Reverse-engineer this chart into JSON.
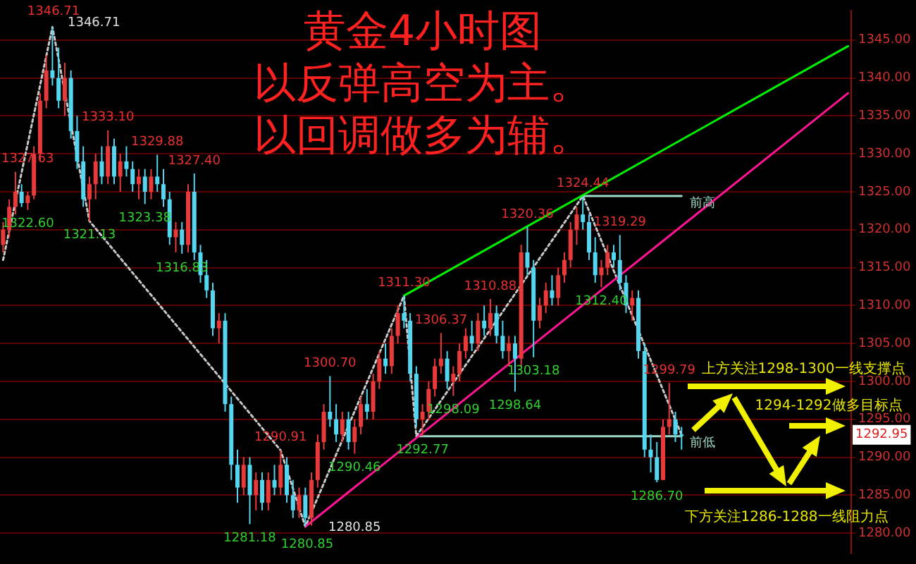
{
  "chart_data": {
    "type": "candlestick",
    "title": "黄金4小时图",
    "subtitle": "以反弹高空为主。以回调做多为辅。",
    "categories": [
      null,
      null,
      null,
      null,
      null,
      null,
      null,
      null,
      null,
      null,
      null,
      null,
      null,
      null,
      null,
      null,
      null,
      null,
      null,
      null,
      null,
      null,
      null,
      null,
      null,
      null,
      null,
      null,
      null,
      null,
      null,
      null,
      null,
      null,
      null,
      null,
      null,
      null,
      null,
      null,
      null,
      null,
      null,
      null,
      null,
      null,
      null,
      null,
      null,
      null,
      null,
      null,
      null,
      null,
      null,
      null,
      null,
      null,
      null,
      null,
      null,
      null,
      null,
      null,
      null,
      null,
      null,
      null,
      null,
      null,
      null,
      null,
      null,
      null,
      null,
      null,
      null,
      null,
      null,
      null,
      null,
      null,
      null,
      null,
      null,
      null,
      null,
      null,
      null,
      null,
      null,
      null,
      null,
      null,
      null,
      null,
      null,
      null,
      null,
      null,
      null,
      null,
      null,
      null,
      null,
      null,
      null,
      null,
      null,
      null,
      null,
      null,
      null,
      null,
      null,
      null,
      null,
      null,
      null,
      null,
      null,
      null,
      null,
      null,
      null,
      null,
      null,
      null,
      null,
      null,
      null,
      null,
      null,
      null,
      null,
      null,
      null,
      null
    ],
    "ohlc": [
      [
        1318,
        1321,
        1317,
        1320
      ],
      [
        1320,
        1324,
        1319,
        1323
      ],
      [
        1323,
        1327.63,
        1322,
        1325
      ],
      [
        1325,
        1326,
        1323,
        1323.5
      ],
      [
        1323.5,
        1325,
        1322.6,
        1324.5
      ],
      [
        1324.5,
        1331,
        1324,
        1330
      ],
      [
        1330,
        1338,
        1329,
        1337
      ],
      [
        1337,
        1343,
        1336,
        1341
      ],
      [
        1341,
        1346.71,
        1339,
        1340
      ],
      [
        1340,
        1344,
        1336,
        1337
      ],
      [
        1337,
        1342,
        1335,
        1340
      ],
      [
        1340,
        1341,
        1332,
        1333
      ],
      [
        1333,
        1335,
        1328,
        1329
      ],
      [
        1329,
        1331,
        1323,
        1324
      ],
      [
        1324,
        1327,
        1321.13,
        1326
      ],
      [
        1326,
        1330,
        1324,
        1329
      ],
      [
        1329,
        1331,
        1326,
        1327
      ],
      [
        1327,
        1333.1,
        1326,
        1331
      ],
      [
        1331,
        1332,
        1326,
        1327
      ],
      [
        1327,
        1330,
        1325,
        1329
      ],
      [
        1329,
        1331,
        1327,
        1328
      ],
      [
        1328,
        1329,
        1325,
        1326
      ],
      [
        1326,
        1328,
        1324,
        1327
      ],
      [
        1327,
        1328,
        1323.38,
        1325
      ],
      [
        1325,
        1328,
        1324,
        1327
      ],
      [
        1327,
        1329.88,
        1325,
        1326
      ],
      [
        1326,
        1328,
        1323,
        1324
      ],
      [
        1324,
        1325,
        1318,
        1319
      ],
      [
        1319,
        1321,
        1317,
        1320
      ],
      [
        1320,
        1321,
        1316.83,
        1318
      ],
      [
        1318,
        1326,
        1317,
        1325
      ],
      [
        1325,
        1327.4,
        1316,
        1317
      ],
      [
        1317,
        1318,
        1313,
        1314
      ],
      [
        1314,
        1316,
        1311,
        1312
      ],
      [
        1312,
        1313,
        1306,
        1307
      ],
      [
        1307,
        1309,
        1305,
        1308
      ],
      [
        1308,
        1309,
        1296,
        1297
      ],
      [
        1297,
        1298,
        1287,
        1289
      ],
      [
        1289,
        1291,
        1284,
        1286
      ],
      [
        1286,
        1290,
        1285,
        1289
      ],
      [
        1289,
        1290,
        1281.18,
        1285
      ],
      [
        1285,
        1288,
        1283,
        1287
      ],
      [
        1287,
        1288,
        1283,
        1284
      ],
      [
        1284,
        1288,
        1283,
        1287
      ],
      [
        1287,
        1289,
        1285,
        1286
      ],
      [
        1286,
        1290.91,
        1285,
        1289
      ],
      [
        1289,
        1290,
        1284,
        1285
      ],
      [
        1285,
        1287,
        1282,
        1283
      ],
      [
        1283,
        1286,
        1282,
        1285
      ],
      [
        1285,
        1286,
        1280.85,
        1282
      ],
      [
        1282,
        1288,
        1281,
        1287
      ],
      [
        1287,
        1293,
        1286,
        1292
      ],
      [
        1292,
        1297,
        1291,
        1296
      ],
      [
        1296,
        1300.7,
        1294,
        1295
      ],
      [
        1295,
        1297,
        1292,
        1293
      ],
      [
        1293,
        1296,
        1292,
        1295
      ],
      [
        1295,
        1296,
        1291,
        1292
      ],
      [
        1292,
        1295,
        1290.46,
        1294
      ],
      [
        1294,
        1298,
        1293,
        1297
      ],
      [
        1297,
        1299,
        1295,
        1296
      ],
      [
        1296,
        1301,
        1295,
        1300
      ],
      [
        1300,
        1304,
        1299,
        1303
      ],
      [
        1303,
        1305,
        1301,
        1302
      ],
      [
        1302,
        1307,
        1301,
        1306
      ],
      [
        1306,
        1310,
        1305,
        1309
      ],
      [
        1309,
        1311.3,
        1307,
        1308
      ],
      [
        1308,
        1309,
        1300,
        1301
      ],
      [
        1301,
        1302,
        1294,
        1295
      ],
      [
        1295,
        1297,
        1292.77,
        1296
      ],
      [
        1296,
        1300,
        1295,
        1299
      ],
      [
        1299,
        1303,
        1298,
        1302
      ],
      [
        1302,
        1306.37,
        1301,
        1303
      ],
      [
        1303,
        1304,
        1299,
        1300
      ],
      [
        1300,
        1302,
        1298.09,
        1301
      ],
      [
        1301,
        1305,
        1300,
        1304
      ],
      [
        1304,
        1307,
        1303,
        1306
      ],
      [
        1306,
        1308,
        1304,
        1305
      ],
      [
        1305,
        1309,
        1304,
        1308
      ],
      [
        1308,
        1310,
        1306,
        1307
      ],
      [
        1307,
        1310.88,
        1306,
        1309
      ],
      [
        1309,
        1310,
        1305,
        1306
      ],
      [
        1306,
        1308,
        1303,
        1304
      ],
      [
        1304,
        1306,
        1302,
        1305
      ],
      [
        1305,
        1306,
        1298.64,
        1303
      ],
      [
        1303,
        1318,
        1302,
        1317
      ],
      [
        1317,
        1320.36,
        1314,
        1315
      ],
      [
        1315,
        1316,
        1303.18,
        1308
      ],
      [
        1308,
        1311,
        1307,
        1310
      ],
      [
        1310,
        1313,
        1309,
        1312
      ],
      [
        1312,
        1314,
        1310,
        1311
      ],
      [
        1311,
        1315,
        1310,
        1314
      ],
      [
        1314,
        1317,
        1313,
        1316
      ],
      [
        1316,
        1321,
        1315,
        1320
      ],
      [
        1320,
        1323,
        1318,
        1322
      ],
      [
        1322,
        1324.44,
        1320,
        1321
      ],
      [
        1321,
        1322,
        1316,
        1317
      ],
      [
        1317,
        1319,
        1313,
        1314
      ],
      [
        1314,
        1316,
        1312.4,
        1315
      ],
      [
        1315,
        1318,
        1314,
        1317
      ],
      [
        1317,
        1318,
        1315,
        1316
      ],
      [
        1316,
        1319.29,
        1312,
        1313
      ],
      [
        1313,
        1314,
        1309,
        1310
      ],
      [
        1310,
        1312,
        1308,
        1311
      ],
      [
        1311,
        1312,
        1303,
        1304
      ],
      [
        1304,
        1305,
        1290,
        1291
      ],
      [
        1291,
        1293,
        1288,
        1290
      ],
      [
        1290,
        1292,
        1286.7,
        1287
      ],
      [
        1287,
        1295,
        1287,
        1294
      ],
      [
        1294,
        1299.79,
        1293,
        1295
      ],
      [
        1295,
        1296,
        1292,
        1293
      ],
      [
        1293,
        1294,
        1291,
        1292.95
      ],
      null,
      null,
      null,
      null,
      null,
      null,
      null,
      null,
      null,
      null,
      null,
      null,
      null,
      null,
      null,
      null,
      null,
      null,
      null,
      null,
      null,
      null,
      null,
      null,
      null,
      null,
      null
    ],
    "series": [
      {
        "type": "line",
        "color": "#00ee00",
        "values": [
          null,
          null,
          null,
          null,
          null,
          null,
          null,
          null,
          null,
          null,
          null,
          null,
          null,
          null,
          null,
          null,
          null,
          null,
          null,
          null,
          null,
          null,
          null,
          null,
          null,
          null,
          null,
          null,
          null,
          null,
          null,
          null,
          null,
          null,
          null,
          null,
          null,
          null,
          null,
          null,
          null,
          null,
          null,
          null,
          null,
          null,
          null,
          null,
          null,
          null,
          null,
          null,
          null,
          null,
          null,
          null,
          null,
          null,
          null,
          null,
          null,
          null,
          null,
          null,
          null,
          1311.3,
          null,
          null,
          null,
          null,
          null,
          null,
          null,
          null,
          null,
          null,
          null,
          null,
          null,
          null,
          null,
          null,
          null,
          null,
          null,
          null,
          null,
          null,
          null,
          null,
          null,
          null,
          null,
          null,
          null,
          null,
          null,
          null,
          null,
          null,
          null,
          null,
          null,
          null,
          null,
          null,
          null,
          null,
          null,
          null,
          null,
          null,
          null,
          null,
          null,
          null,
          null,
          null,
          null,
          null,
          null,
          null,
          null,
          null,
          null,
          null,
          null,
          null,
          null,
          null,
          null,
          null,
          null,
          null,
          null,
          null,
          null,
          1344.2
        ]
      },
      {
        "type": "line",
        "color": "#ff1493",
        "values": [
          null,
          null,
          null,
          null,
          null,
          null,
          null,
          null,
          null,
          null,
          null,
          null,
          null,
          null,
          null,
          null,
          null,
          null,
          null,
          null,
          null,
          null,
          null,
          null,
          null,
          null,
          null,
          null,
          null,
          null,
          null,
          null,
          null,
          null,
          null,
          null,
          null,
          null,
          null,
          null,
          null,
          null,
          null,
          null,
          null,
          null,
          null,
          null,
          null,
          1280.85,
          null,
          null,
          null,
          null,
          null,
          null,
          null,
          null,
          null,
          null,
          null,
          null,
          null,
          null,
          null,
          null,
          null,
          null,
          null,
          null,
          null,
          null,
          null,
          null,
          null,
          null,
          null,
          null,
          null,
          null,
          null,
          null,
          null,
          null,
          null,
          null,
          null,
          null,
          null,
          null,
          null,
          null,
          null,
          null,
          null,
          null,
          null,
          null,
          null,
          null,
          null,
          null,
          null,
          null,
          null,
          null,
          null,
          null,
          null,
          null,
          null,
          null,
          null,
          null,
          null,
          null,
          null,
          null,
          null,
          null,
          null,
          null,
          null,
          null,
          null,
          null,
          null,
          null,
          null,
          null,
          null,
          null,
          null,
          null,
          null,
          null,
          null,
          1338
        ]
      },
      {
        "type": "line",
        "color": "#c8c8c8",
        "line_style": "dotted",
        "values": [
          1316,
          null,
          null,
          null,
          null,
          null,
          null,
          null,
          1346.71,
          null,
          null,
          null,
          null,
          null,
          1321.13,
          null,
          null,
          null,
          null,
          null,
          null,
          null,
          null,
          null,
          null,
          null,
          null,
          null,
          null,
          null,
          null,
          null,
          null,
          null,
          null,
          null,
          null,
          null,
          null,
          null,
          null,
          null,
          null,
          null,
          null,
          1290.91,
          null,
          null,
          null,
          1280.85,
          null,
          null,
          null,
          null,
          null,
          null,
          null,
          null,
          null,
          null,
          null,
          null,
          null,
          null,
          null,
          1311.3,
          null,
          1292.77,
          null,
          null,
          null,
          null,
          null,
          null,
          null,
          null,
          null,
          null,
          null,
          null,
          null,
          null,
          null,
          null,
          null,
          null,
          null,
          null,
          null,
          null,
          null,
          null,
          null,
          null,
          1324.44,
          null,
          null,
          null,
          null,
          null,
          null,
          null,
          null,
          null,
          null,
          null,
          null,
          null,
          null,
          null,
          1292.95,
          null,
          null,
          null,
          null,
          null,
          null,
          null,
          null,
          null,
          null,
          null,
          null,
          null,
          null,
          null,
          null,
          null,
          null,
          null,
          null,
          null,
          null,
          null,
          null,
          null,
          null,
          null
        ]
      },
      {
        "type": "line",
        "name": "前高",
        "color": "#9fd8c8",
        "values": [
          null,
          null,
          null,
          null,
          null,
          null,
          null,
          null,
          null,
          null,
          null,
          null,
          null,
          null,
          null,
          null,
          null,
          null,
          null,
          null,
          null,
          null,
          null,
          null,
          null,
          null,
          null,
          null,
          null,
          null,
          null,
          null,
          null,
          null,
          null,
          null,
          null,
          null,
          null,
          null,
          null,
          null,
          null,
          null,
          null,
          null,
          null,
          null,
          null,
          null,
          null,
          null,
          null,
          null,
          null,
          null,
          null,
          null,
          null,
          null,
          null,
          null,
          null,
          null,
          null,
          null,
          null,
          null,
          null,
          null,
          null,
          null,
          null,
          null,
          null,
          null,
          null,
          null,
          null,
          null,
          null,
          null,
          null,
          null,
          null,
          null,
          null,
          null,
          null,
          null,
          null,
          null,
          null,
          null,
          1324.44,
          null,
          null,
          null,
          null,
          null,
          null,
          null,
          null,
          null,
          null,
          null,
          null,
          null,
          null,
          null,
          1324.44,
          null,
          null,
          null,
          null,
          null,
          null,
          null,
          null,
          null,
          null,
          null,
          null,
          null,
          null,
          null,
          null,
          null,
          null,
          null,
          null,
          null,
          null,
          null,
          null,
          null,
          null,
          null
        ]
      },
      {
        "type": "line",
        "name": "前低",
        "color": "#9fd8c8",
        "values": [
          null,
          null,
          null,
          null,
          null,
          null,
          null,
          null,
          null,
          null,
          null,
          null,
          null,
          null,
          null,
          null,
          null,
          null,
          null,
          null,
          null,
          null,
          null,
          null,
          null,
          null,
          null,
          null,
          null,
          null,
          null,
          null,
          null,
          null,
          null,
          null,
          null,
          null,
          null,
          null,
          null,
          null,
          null,
          null,
          null,
          null,
          null,
          null,
          null,
          null,
          null,
          null,
          null,
          null,
          null,
          null,
          null,
          null,
          null,
          null,
          null,
          null,
          null,
          null,
          null,
          null,
          null,
          1292.77,
          null,
          null,
          null,
          null,
          null,
          null,
          null,
          null,
          null,
          null,
          null,
          null,
          null,
          null,
          null,
          null,
          null,
          null,
          null,
          null,
          null,
          null,
          null,
          null,
          null,
          null,
          null,
          null,
          null,
          null,
          null,
          null,
          null,
          null,
          null,
          null,
          null,
          null,
          null,
          null,
          null,
          null,
          1292.77,
          null,
          null,
          null,
          null,
          null,
          null,
          null,
          null,
          null,
          null,
          null,
          null,
          null,
          null,
          null,
          null,
          null,
          null,
          null,
          null,
          null,
          null,
          null,
          null,
          null,
          null,
          null
        ]
      }
    ],
    "ylim": [
      1277.3,
      1348.9
    ],
    "yticks": [
      {
        "value": 1280,
        "label": "1280.00"
      },
      {
        "value": 1285,
        "label": "1285.00"
      },
      {
        "value": 1290,
        "label": "1290.00"
      },
      {
        "value": 1295,
        "label": "1295.00"
      },
      {
        "value": 1300,
        "label": "1300.00"
      },
      {
        "value": 1305,
        "label": "1305.00"
      },
      {
        "value": 1310,
        "label": "1310.00"
      },
      {
        "value": 1315,
        "label": "1315.00"
      },
      {
        "value": 1320,
        "label": "1320.00"
      },
      {
        "value": 1325,
        "label": "1325.00"
      },
      {
        "value": 1330,
        "label": "1330.00"
      },
      {
        "value": 1335,
        "label": "1335.00"
      },
      {
        "value": 1340,
        "label": "1340.00"
      },
      {
        "value": 1345,
        "label": "1345.00"
      }
    ],
    "tick_labels": "y",
    "grid": "y",
    "marker": "none",
    "annotations": [
      {
        "text": "1327.63",
        "y": 1327.63
      },
      "1346.71",
      "1346.71",
      {
        "text": "1333.10",
        "y": 1333.1
      },
      {
        "text": "1329.88",
        "y": 1329.88
      },
      {
        "text": "1327.40",
        "y": 1327.4
      },
      {
        "text": "1290.91",
        "y": 1290.91
      },
      {
        "text": "1300.70",
        "y": 1300.7
      },
      {
        "text": "1311.30",
        "y": 1311.3
      },
      {
        "text": "1306.37",
        "y": 1306.37
      },
      {
        "text": "1310.88",
        "y": 1310.88
      },
      {
        "text": "1320.36",
        "y": 1320.36
      },
      {
        "text": "1324.44",
        "y": 1324.44
      },
      {
        "text": "1319.29",
        "y": 1319.29
      },
      {
        "text": "1299.79",
        "y": 1299.79
      },
      {
        "text": "1322.60",
        "y": 1322.6
      },
      {
        "text": "1321.13",
        "y": 1321.13
      },
      {
        "text": "1323.38",
        "y": 1323.38
      },
      {
        "text": "1316.83",
        "y": 1316.83
      },
      {
        "text": "1281.18",
        "y": 1281.18
      },
      "1280.85",
      "1280.85",
      {
        "text": "1290.46",
        "y": 1290.46
      },
      {
        "text": "1292.77",
        "y": 1292.77
      },
      {
        "text": "1298.09",
        "y": 1298.09
      },
      {
        "text": "1298.64",
        "y": 1298.64
      },
      {
        "text": "1303.18",
        "y": 1303.18
      },
      {
        "text": "1312.40",
        "y": 1312.4
      },
      {
        "text": "1286.70",
        "y": 1286.7
      },
      "上方关注1298-1300一线支撑点",
      "1294-1292做多目标点",
      "下方关注1286-1288一线阻力点",
      "1292.95"
    ]
  }
}
